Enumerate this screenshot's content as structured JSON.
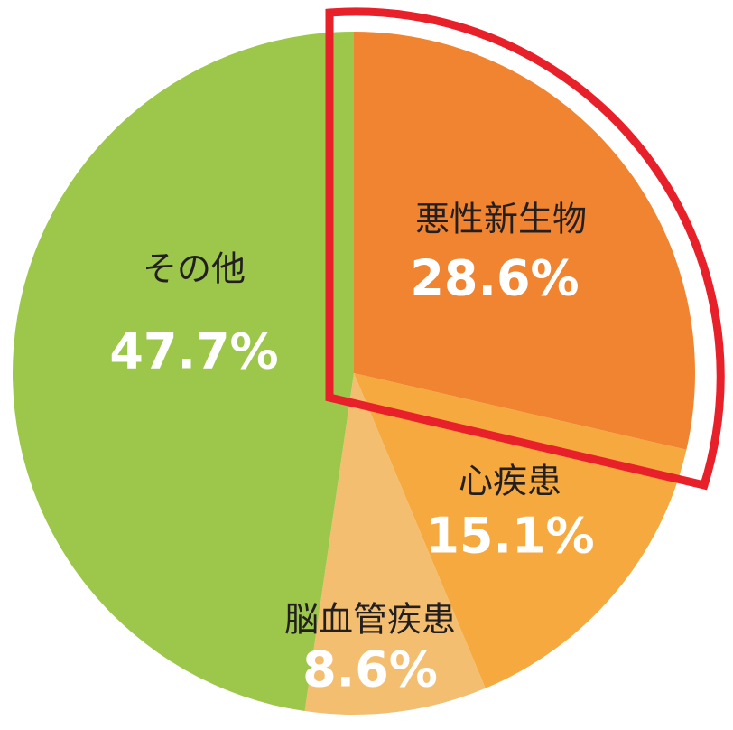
{
  "chart_data": {
    "type": "pie",
    "categories": [
      "悪性新生物",
      "心疾患",
      "脳血管疾患",
      "その他"
    ],
    "values": [
      28.6,
      15.1,
      8.6,
      47.7
    ],
    "value_labels": [
      "28.6%",
      "15.1%",
      "8.6%",
      "47.7%"
    ],
    "colors": [
      "#f08431",
      "#f6a93e",
      "#f4be70",
      "#9cc74a"
    ]
  }
}
